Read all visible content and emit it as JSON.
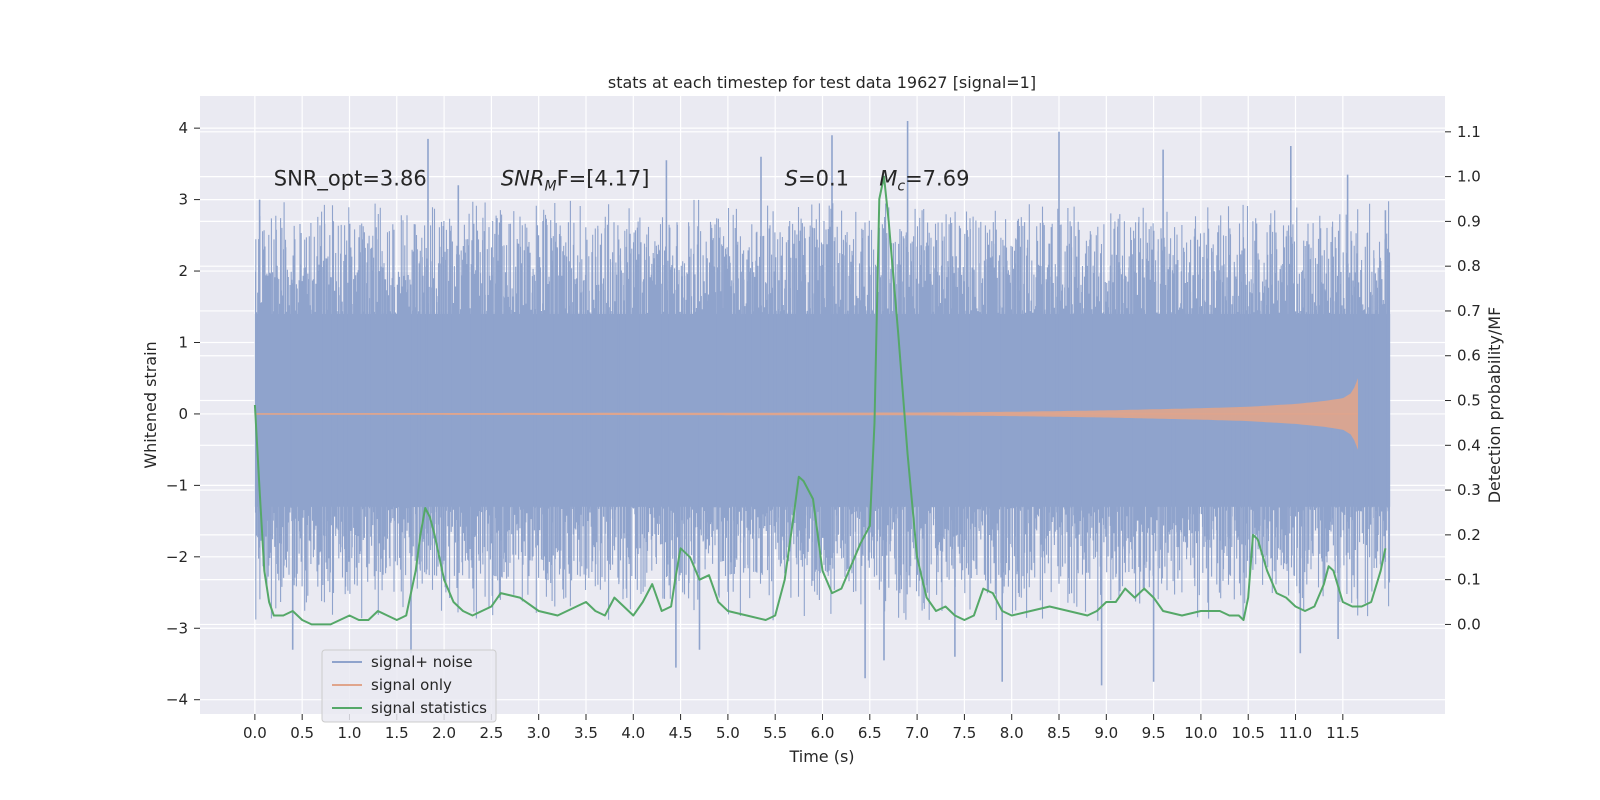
{
  "chart_data": {
    "type": "line",
    "title": "stats at each timestep for test data 19627 [signal=1]",
    "xlabel": "Time (s)",
    "ylabel": "Whitened strain",
    "ylabel_right": "Detection probability/MF",
    "xlim": [
      -0.58,
      12.58
    ],
    "ylim": [
      -4.2,
      4.45
    ],
    "ylim_right": [
      -0.2,
      1.18
    ],
    "x_ticks": [
      0.0,
      0.5,
      1.0,
      1.5,
      2.0,
      2.5,
      3.0,
      3.5,
      4.0,
      4.5,
      5.0,
      5.5,
      6.0,
      6.5,
      7.0,
      7.5,
      8.0,
      8.5,
      9.0,
      9.5,
      10.0,
      10.5,
      11.0,
      11.5
    ],
    "x_tick_labels": [
      "0.0",
      "0.5",
      "1.0",
      "1.5",
      "2.0",
      "2.5",
      "3.0",
      "3.5",
      "4.0",
      "4.5",
      "5.0",
      "5.5",
      "6.0",
      "6.5",
      "7.0",
      "7.5",
      "8.0",
      "8.5",
      "9.0",
      "9.5",
      "10.0",
      "10.5",
      "11.0",
      "11.5"
    ],
    "y_ticks": [
      -4,
      -3,
      -2,
      -1,
      0,
      1,
      2,
      3,
      4
    ],
    "y_tick_labels": [
      "−4",
      "−3",
      "−2",
      "−1",
      "0",
      "1",
      "2",
      "3",
      "4"
    ],
    "y_ticks_right": [
      0.0,
      0.1,
      0.2,
      0.3,
      0.4,
      0.5,
      0.6,
      0.7,
      0.8,
      0.9,
      1.0,
      1.1
    ],
    "y_tick_labels_right": [
      "0.0",
      "0.1",
      "0.2",
      "0.3",
      "0.4",
      "0.5",
      "0.6",
      "0.7",
      "0.8",
      "0.9",
      "1.0",
      "1.1"
    ],
    "grid": true,
    "legend_position": "lower-left",
    "annotations": [
      {
        "id": "snr-opt",
        "text": "SNR_opt=3.86",
        "x": 0.2,
        "y": 3.2
      },
      {
        "id": "snr-mf",
        "x": 2.6,
        "y": 3.2,
        "main": "SNR",
        "sub": "M",
        "rest": "F=[4.17]"
      },
      {
        "id": "s-stat",
        "x": 5.6,
        "y": 3.2,
        "main": "S",
        "rest": "=0.1"
      },
      {
        "id": "mc",
        "x": 6.6,
        "y": 3.2,
        "main": "M",
        "sub": "c",
        "rest": "=7.69"
      }
    ],
    "series": [
      {
        "name": "signal+ noise",
        "axis": "left",
        "color": "#8fa3cc",
        "style": "noise",
        "t_range": [
          0.0,
          12.0
        ],
        "core_band": [
          -1.3,
          1.4
        ],
        "extreme_max": 4.1,
        "extreme_min": -3.8,
        "peaks": [
          {
            "x": 0.05,
            "y": 3.0
          },
          {
            "x": 1.83,
            "y": 3.85
          },
          {
            "x": 2.15,
            "y": 3.2
          },
          {
            "x": 4.35,
            "y": 3.55
          },
          {
            "x": 5.35,
            "y": 3.6
          },
          {
            "x": 6.1,
            "y": 3.9
          },
          {
            "x": 6.9,
            "y": 4.1
          },
          {
            "x": 8.5,
            "y": 3.95
          },
          {
            "x": 9.6,
            "y": 3.7
          },
          {
            "x": 10.95,
            "y": 3.75
          },
          {
            "x": 11.55,
            "y": 3.35
          },
          {
            "x": 11.95,
            "y": 2.85
          },
          {
            "x": 0.4,
            "y": -3.3
          },
          {
            "x": 1.65,
            "y": -3.35
          },
          {
            "x": 4.45,
            "y": -3.55
          },
          {
            "x": 4.7,
            "y": -3.3
          },
          {
            "x": 6.45,
            "y": -3.7
          },
          {
            "x": 6.65,
            "y": -3.45
          },
          {
            "x": 7.4,
            "y": -3.4
          },
          {
            "x": 7.9,
            "y": -3.75
          },
          {
            "x": 8.95,
            "y": -3.8
          },
          {
            "x": 9.5,
            "y": -3.75
          },
          {
            "x": 11.05,
            "y": -3.35
          },
          {
            "x": 11.45,
            "y": -3.15
          }
        ]
      },
      {
        "name": "signal only",
        "axis": "left",
        "color": "#e0a58c",
        "style": "chirp",
        "t_range": [
          0.0,
          11.66
        ],
        "envelope": [
          [
            0,
            0.01
          ],
          [
            7.0,
            0.02
          ],
          [
            8.0,
            0.03
          ],
          [
            9.0,
            0.05
          ],
          [
            10.0,
            0.08
          ],
          [
            10.5,
            0.1
          ],
          [
            11.0,
            0.14
          ],
          [
            11.3,
            0.18
          ],
          [
            11.5,
            0.22
          ],
          [
            11.6,
            0.3
          ],
          [
            11.66,
            0.5
          ]
        ]
      },
      {
        "name": "signal statistics",
        "axis": "right",
        "color": "#55a868",
        "style": "line",
        "x": [
          0.0,
          0.05,
          0.1,
          0.15,
          0.2,
          0.3,
          0.4,
          0.5,
          0.6,
          0.8,
          1.0,
          1.1,
          1.2,
          1.3,
          1.4,
          1.5,
          1.6,
          1.7,
          1.75,
          1.8,
          1.85,
          1.9,
          2.0,
          2.1,
          2.2,
          2.3,
          2.4,
          2.5,
          2.6,
          2.8,
          3.0,
          3.2,
          3.4,
          3.5,
          3.6,
          3.7,
          3.8,
          3.9,
          4.0,
          4.1,
          4.2,
          4.3,
          4.4,
          4.45,
          4.5,
          4.6,
          4.7,
          4.8,
          4.9,
          5.0,
          5.2,
          5.4,
          5.5,
          5.6,
          5.7,
          5.75,
          5.8,
          5.9,
          6.0,
          6.1,
          6.2,
          6.3,
          6.4,
          6.5,
          6.55,
          6.6,
          6.65,
          6.7,
          6.8,
          6.9,
          7.0,
          7.1,
          7.2,
          7.3,
          7.4,
          7.5,
          7.6,
          7.7,
          7.8,
          7.9,
          8.0,
          8.2,
          8.4,
          8.6,
          8.8,
          8.9,
          9.0,
          9.1,
          9.2,
          9.3,
          9.4,
          9.5,
          9.6,
          9.8,
          10.0,
          10.2,
          10.3,
          10.4,
          10.45,
          10.5,
          10.55,
          10.6,
          10.7,
          10.8,
          10.9,
          11.0,
          11.1,
          11.2,
          11.3,
          11.35,
          11.4,
          11.5,
          11.6,
          11.7,
          11.8,
          11.9,
          11.95
        ],
        "y": [
          0.49,
          0.3,
          0.12,
          0.05,
          0.02,
          0.02,
          0.03,
          0.01,
          0.0,
          0.0,
          0.02,
          0.01,
          0.01,
          0.03,
          0.02,
          0.01,
          0.02,
          0.12,
          0.2,
          0.26,
          0.24,
          0.2,
          0.1,
          0.05,
          0.03,
          0.02,
          0.03,
          0.04,
          0.07,
          0.06,
          0.03,
          0.02,
          0.04,
          0.05,
          0.03,
          0.02,
          0.06,
          0.04,
          0.02,
          0.05,
          0.09,
          0.03,
          0.04,
          0.11,
          0.17,
          0.15,
          0.1,
          0.11,
          0.05,
          0.03,
          0.02,
          0.01,
          0.02,
          0.1,
          0.25,
          0.33,
          0.32,
          0.28,
          0.12,
          0.07,
          0.08,
          0.13,
          0.18,
          0.22,
          0.45,
          0.95,
          1.0,
          0.9,
          0.65,
          0.38,
          0.15,
          0.06,
          0.03,
          0.04,
          0.02,
          0.01,
          0.02,
          0.08,
          0.07,
          0.03,
          0.02,
          0.03,
          0.04,
          0.03,
          0.02,
          0.03,
          0.05,
          0.05,
          0.08,
          0.06,
          0.08,
          0.06,
          0.03,
          0.02,
          0.03,
          0.03,
          0.02,
          0.02,
          0.01,
          0.06,
          0.2,
          0.19,
          0.12,
          0.07,
          0.06,
          0.04,
          0.03,
          0.04,
          0.09,
          0.13,
          0.12,
          0.05,
          0.04,
          0.04,
          0.05,
          0.12,
          0.17
        ]
      }
    ]
  }
}
